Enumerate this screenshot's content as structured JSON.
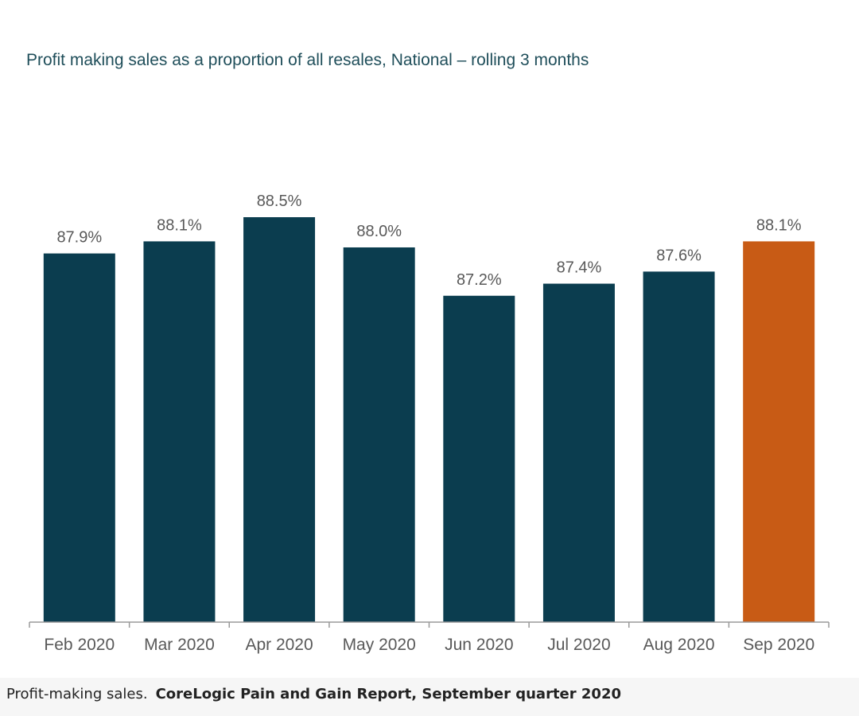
{
  "chart_data": {
    "type": "bar",
    "title": "Profit making sales as a proportion of all resales, National – rolling 3 months",
    "categories": [
      "Feb 2020",
      "Mar 2020",
      "Apr 2020",
      "May 2020",
      "Jun 2020",
      "Jul 2020",
      "Aug 2020",
      "Sep 2020"
    ],
    "values": [
      87.9,
      88.1,
      88.5,
      88.0,
      87.2,
      87.4,
      87.6,
      88.1
    ],
    "data_labels": [
      "87.9%",
      "88.1%",
      "88.5%",
      "88.0%",
      "87.2%",
      "87.4%",
      "87.6%",
      "88.1%"
    ],
    "ylim": [
      81.8,
      88.5
    ],
    "grid": false,
    "y_axis_visible": false,
    "colors": {
      "bar": "#0b3d4f",
      "highlight_bar": "#c85b15",
      "highlight_category": "Sep 2020",
      "label_text": "#595959",
      "axis": "#9a9a9a",
      "title_text": "#1f4e5a"
    }
  },
  "caption": {
    "text": "Profit-making sales.",
    "credit": "CoreLogic Pain and Gain Report, September quarter 2020"
  }
}
